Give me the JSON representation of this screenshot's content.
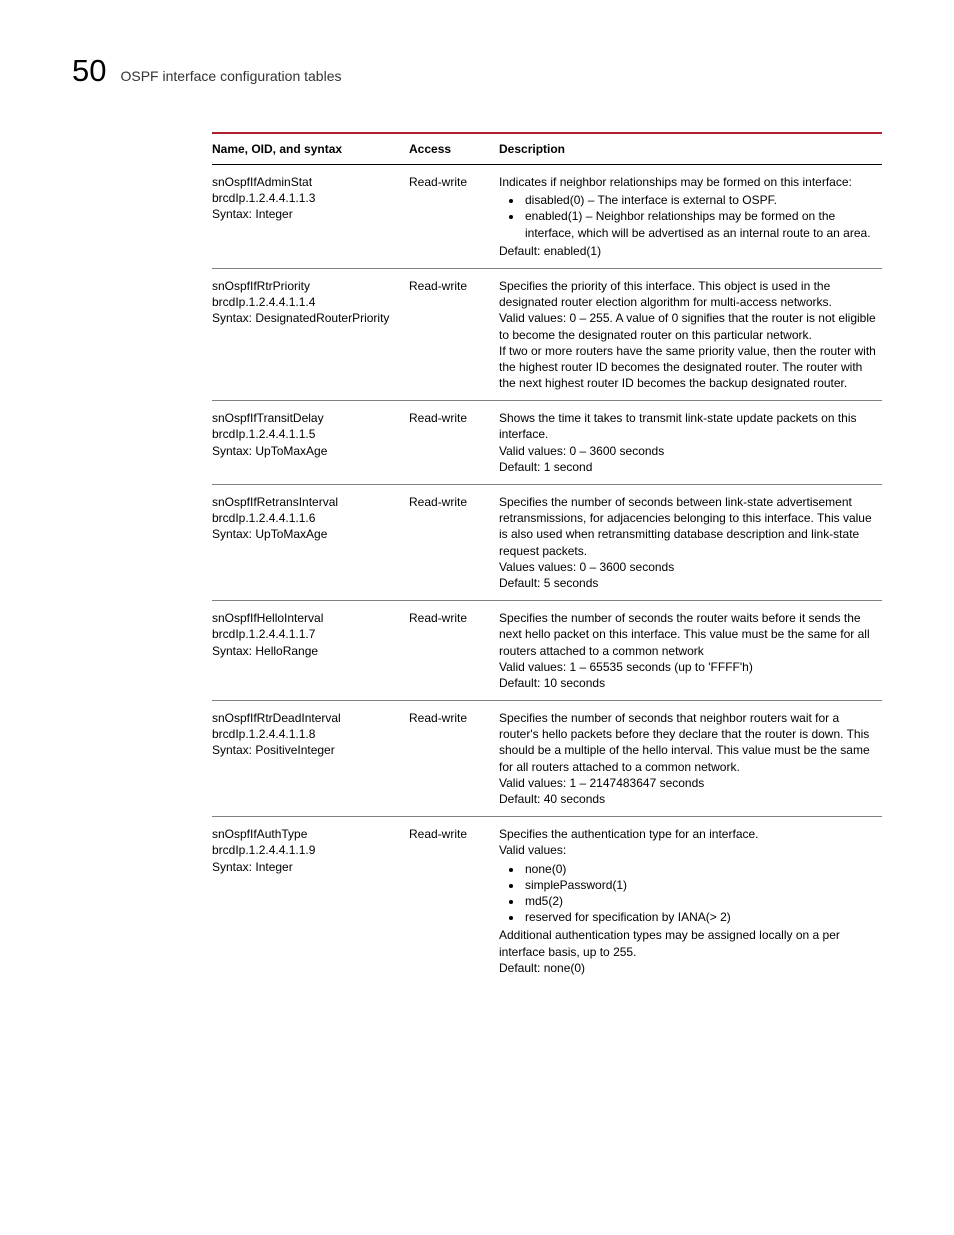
{
  "header": {
    "chapter_number": "50",
    "chapter_title": "OSPF interface configuration tables"
  },
  "table": {
    "columns": {
      "name": "Name, OID, and syntax",
      "access": "Access",
      "description": "Description"
    }
  },
  "rows": [
    {
      "name1": "snOspfIfAdminStat",
      "name2": "brcdIp.1.2.4.4.1.1.3",
      "name3": "Syntax: Integer",
      "access": "Read-write",
      "d_intro": "Indicates if neighbor relationships may be formed on this interface:",
      "b1": "disabled(0) – The interface is external to OSPF.",
      "b2": "enabled(1) – Neighbor relationships may be formed on the interface, which will be advertised as an internal route to an area.",
      "d_tail": "Default: enabled(1)"
    },
    {
      "name1": "snOspfIfRtrPriority",
      "name2": "brcdIp.1.2.4.4.1.1.4",
      "name3": "Syntax: DesignatedRouterPriority",
      "access": "Read-write",
      "d1": "Specifies the priority of this interface. This object is used in the designated router election algorithm for multi-access networks.",
      "d2": "Valid values: 0 – 255. A value of 0 signifies that the router is not eligible to become the designated router on this particular network.",
      "d3": "If two or more routers have the same priority value, then the router with the highest router ID becomes the designated router.  The router with the next highest router ID becomes the backup designated router."
    },
    {
      "name1": "snOspfIfTransitDelay",
      "name2": "brcdIp.1.2.4.4.1.1.5",
      "name3": "Syntax: UpToMaxAge",
      "access": "Read-write",
      "d1": "Shows the time it takes to transmit link-state update packets on this interface.",
      "d2": "Valid values: 0 – 3600 seconds",
      "d3": "Default: 1 second"
    },
    {
      "name1": "snOspfIfRetransInterval",
      "name2": "brcdIp.1.2.4.4.1.1.6",
      "name3": "Syntax: UpToMaxAge",
      "access": "Read-write",
      "d1": "Specifies the number of seconds between link-state advertisement retransmissions, for adjacencies belonging to this interface. This value is also used when retransmitting database description and link-state request packets.",
      "d2": "Values values: 0 – 3600 seconds",
      "d3": "Default: 5 seconds"
    },
    {
      "name1": "snOspfIfHelloInterval",
      "name2": "brcdIp.1.2.4.4.1.1.7",
      "name3": "Syntax: HelloRange",
      "access": "Read-write",
      "d1": "Specifies the number of seconds the router waits before it sends the next hello packet on this interface. This value must be the same for all routers attached to a common network",
      "d2": "Valid values: 1 – 65535 seconds (up to 'FFFF'h)",
      "d3": "Default: 10 seconds"
    },
    {
      "name1": "snOspfIfRtrDeadInterval",
      "name2": "brcdIp.1.2.4.4.1.1.8",
      "name3": "Syntax: PositiveInteger",
      "access": "Read-write",
      "d1": "Specifies the number of seconds that neighbor routers wait for a router's hello packets before they declare that the router is down. This should be a multiple of the hello interval. This value must be the same for all routers attached to a common network.",
      "d2": "Valid values: 1 – 2147483647 seconds",
      "d3": "Default: 40 seconds"
    },
    {
      "name1": "snOspfIfAuthType",
      "name2": "brcdIp.1.2.4.4.1.1.9",
      "name3": "Syntax: Integer",
      "access": "Read-write",
      "d_intro1": "Specifies the authentication type for an interface.",
      "d_intro2": "Valid values:",
      "b1": "none(0)",
      "b2": "simplePassword(1)",
      "b3": "md5(2)",
      "b4": "reserved for specification by IANA(> 2)",
      "d_tail1": "Additional authentication types may be assigned locally on a per interface basis, up to 255.",
      "d_tail2": "Default: none(0)"
    }
  ]
}
